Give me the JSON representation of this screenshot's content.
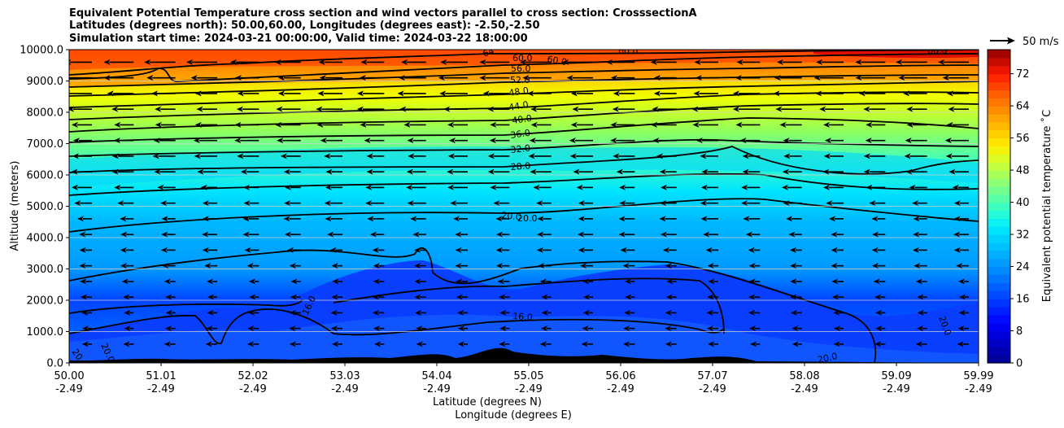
{
  "chart_data": {
    "type": "contour",
    "title_lines": [
      "Equivalent Potential Temperature cross section and wind vectors parallel to cross section: CrosssectionA",
      "Latitudes (degrees north): 50.00,60.00, Longitudes (degrees east): -2.50,-2.50",
      "Simulation start time: 2024-03-21 00:00:00, Valid time: 2024-03-22 18:00:00"
    ],
    "ylabel": "Altitude (meters)",
    "xlabel_lines": [
      "Latitude (degrees N)",
      "Longitude (degrees E)"
    ],
    "ylim": [
      0,
      10000
    ],
    "y_ticks": [
      "0.0",
      "1000.0",
      "2000.0",
      "3000.0",
      "4000.0",
      "5000.0",
      "6000.0",
      "7000.0",
      "8000.0",
      "9000.0",
      "10000.0"
    ],
    "x_ticks_lat": [
      "50.00",
      "51.01",
      "52.02",
      "53.03",
      "54.04",
      "55.05",
      "56.06",
      "57.07",
      "58.08",
      "59.09",
      "59.99"
    ],
    "x_ticks_lon": [
      "-2.49",
      "-2.49",
      "-2.49",
      "-2.49",
      "-2.49",
      "-2.49",
      "-2.49",
      "-2.49",
      "-2.49",
      "-2.49",
      "-2.49"
    ],
    "colorbar": {
      "label": "Equivalent potential temperature $^\\circ$C",
      "label_display": "Equivalent potential temperature ˚C",
      "range": [
        0,
        78
      ],
      "ticks": [
        "0",
        "8",
        "16",
        "24",
        "32",
        "40",
        "48",
        "56",
        "64",
        "72"
      ]
    },
    "wind_key": {
      "label": "50 m/s",
      "speed": 50
    },
    "contour_labels": [
      "64",
      "60.0",
      "60.0",
      "56.0",
      "52.0",
      "48.0",
      "44.0",
      "40.0",
      "36.0",
      "32.0",
      "28.0",
      "20.0",
      "20.0",
      "16.0",
      "16.0",
      "20.0",
      "20.0",
      "20.0",
      "20.0",
      "60.0",
      "60.0"
    ],
    "contour_levels": [
      16,
      20,
      24,
      28,
      32,
      36,
      40,
      44,
      48,
      52,
      56,
      60,
      64
    ]
  }
}
